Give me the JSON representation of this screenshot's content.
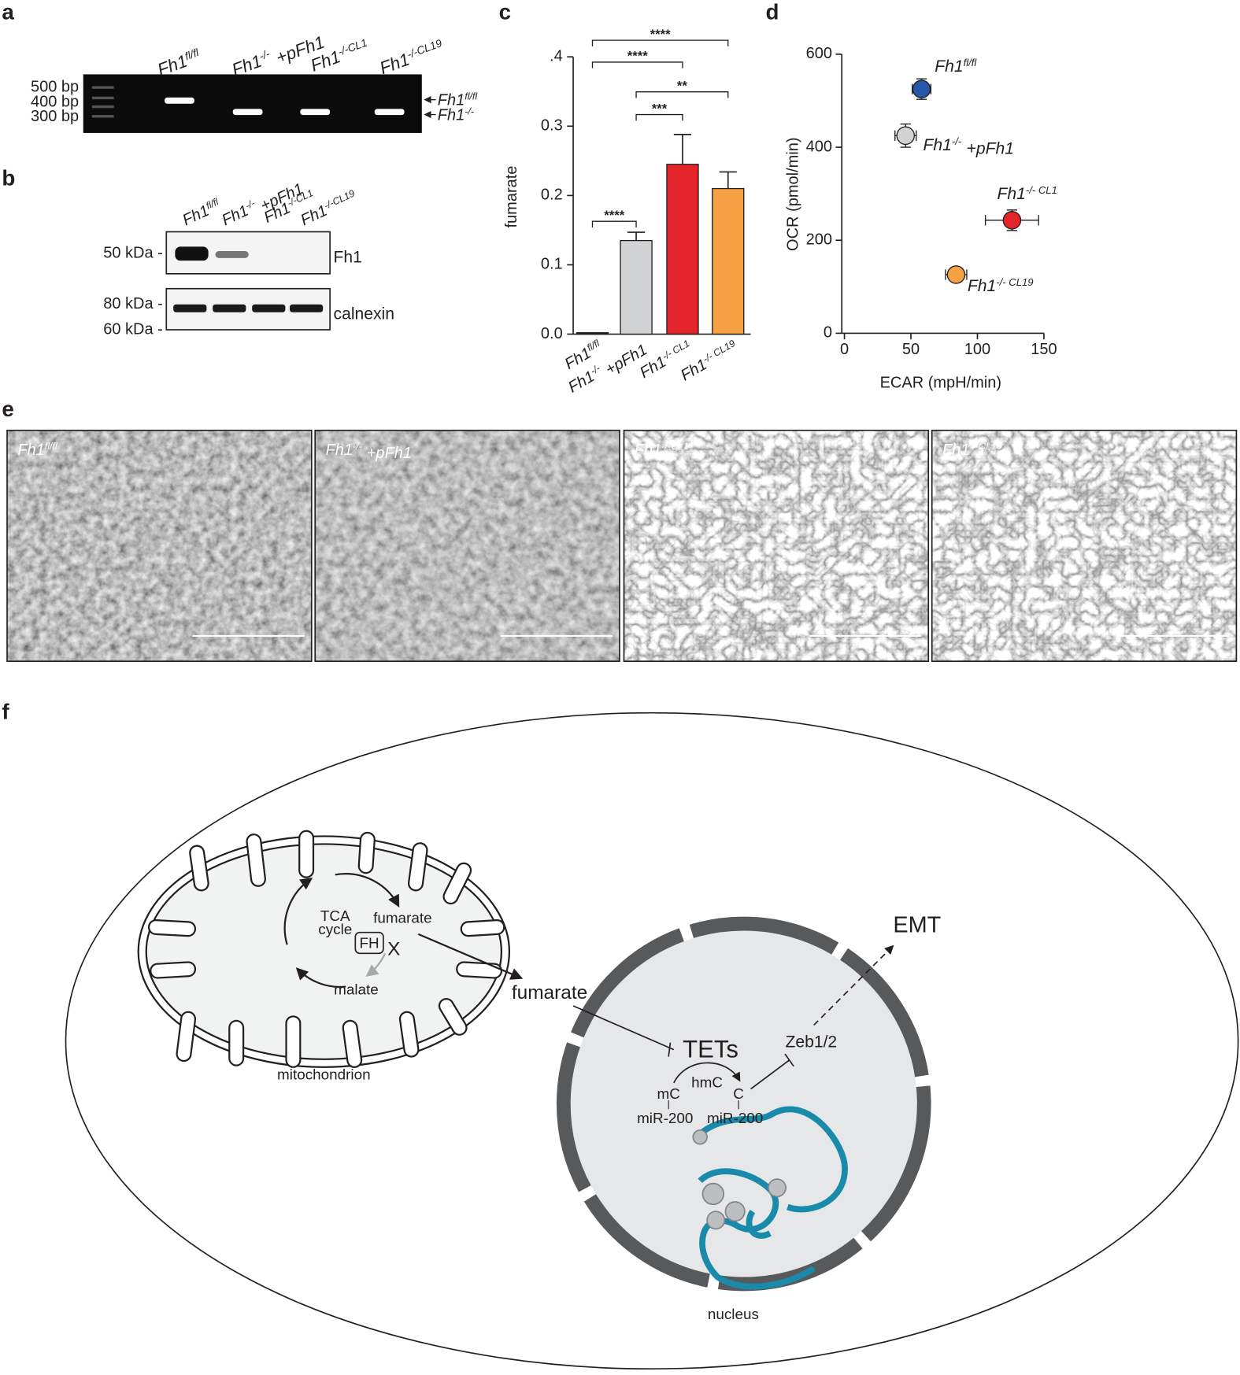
{
  "panel_labels": [
    "a",
    "b",
    "c",
    "d",
    "e",
    "f"
  ],
  "gel": {
    "ladder": [
      "500 bp",
      "400 bp",
      "300 bp"
    ],
    "lanes": [
      {
        "main": "Fh1",
        "sup": "fl/fl"
      },
      {
        "main": "Fh1",
        "sup": "-/-",
        "tail": "+pFh1"
      },
      {
        "main": "Fh1",
        "sup": "-/-CL1"
      },
      {
        "main": "Fh1",
        "sup": "-/-CL19"
      }
    ],
    "bands": [
      {
        "main": "Fh1",
        "sup": "fl/fl"
      },
      {
        "main": "Fh1",
        "sup": "-/-"
      }
    ]
  },
  "blot": {
    "markers": [
      "50 kDa -",
      "80 kDa -",
      "60 kDa -"
    ],
    "targets": [
      "Fh1",
      "calnexin"
    ],
    "lanes": [
      {
        "main": "Fh1",
        "sup": "fl/fl"
      },
      {
        "main": "Fh1",
        "sup": "-/-",
        "tail": "+pFh1"
      },
      {
        "main": "Fh1",
        "sup": "-/-CL1"
      },
      {
        "main": "Fh1",
        "sup": "-/-CL19"
      }
    ]
  },
  "chart_data": [
    {
      "type": "bar",
      "y_label": "fumarate",
      "categories": [
        {
          "main": "Fh1",
          "sup": "fl/fl"
        },
        {
          "main": "Fh1",
          "sup": "-/-",
          "tail": "+pFh1"
        },
        {
          "main": "Fh1",
          "sup": "-/- CL1"
        },
        {
          "main": "Fh1",
          "sup": "-/- CL19"
        }
      ],
      "values": [
        0.002,
        0.135,
        0.245,
        0.21
      ],
      "errors": [
        null,
        0.012,
        0.043,
        0.024
      ],
      "colors": [
        "#231f20",
        "#d1d3d4",
        "#e3242b",
        "#f7a145"
      ],
      "ylim": [
        0,
        0.4
      ],
      "yticks": [
        {
          "value": 0,
          "label": "0.0"
        },
        0.1,
        0.2,
        0.3,
        {
          "value": 0.4,
          "label": ".4"
        }
      ],
      "significance": [
        "****",
        "***",
        "**",
        "****",
        "****"
      ]
    },
    {
      "type": "scatter",
      "x_label": "ECAR (mpH/min)",
      "y_label": "OCR (pmol/min)",
      "xlim": [
        0,
        150
      ],
      "xticks": [
        0,
        50,
        100,
        150
      ],
      "ylim": [
        0,
        600
      ],
      "yticks": [
        0,
        200,
        400,
        600
      ],
      "series": [
        {
          "name": {
            "main": "Fh1",
            "sup": "fl/fl"
          },
          "color": "#2457a6",
          "x": 58,
          "y": 525,
          "x_error": 7,
          "y_error": 22
        },
        {
          "name": {
            "main": "Fh1",
            "sup": "-/-",
            "tail": "+pFh1"
          },
          "color": "#d1d3d4",
          "x": 46,
          "y": 425,
          "x_error": 8,
          "y_error": 25
        },
        {
          "name": {
            "main": "Fh1",
            "sup": "-/- CL1"
          },
          "color": "#e3242b",
          "x": 126,
          "y": 243,
          "x_error": 20,
          "y_error": 22
        },
        {
          "name": {
            "main": "Fh1",
            "sup": "-/- CL19"
          },
          "color": "#f7a145",
          "x": 84,
          "y": 126,
          "x_error": 8,
          "y_error": 6
        }
      ]
    }
  ],
  "micrographs": {
    "labels": [
      {
        "main": "Fh1",
        "sup": "fl/fl"
      },
      {
        "main": "Fh1",
        "sup": "-/-",
        "tail": "+pFh1"
      },
      {
        "main": "Fh1",
        "sup": "-/-CL1"
      },
      {
        "main": "Fh1",
        "sup": "-/-CL19"
      }
    ]
  },
  "diagram": {
    "tca": [
      "TCA",
      "cycle"
    ],
    "fumarate_mito": "fumarate",
    "fh": "FH",
    "block": "X",
    "malate": "malate",
    "mitochondrion": "mitochondrion",
    "fumarate": "fumarate",
    "tets": "TETs",
    "mc": "mC",
    "hmc": "hmC",
    "c": "C",
    "mir200": [
      "miR-200",
      "miR-200"
    ],
    "zeb": "Zeb1/2",
    "emt": "EMT",
    "nucleus": "nucleus"
  }
}
